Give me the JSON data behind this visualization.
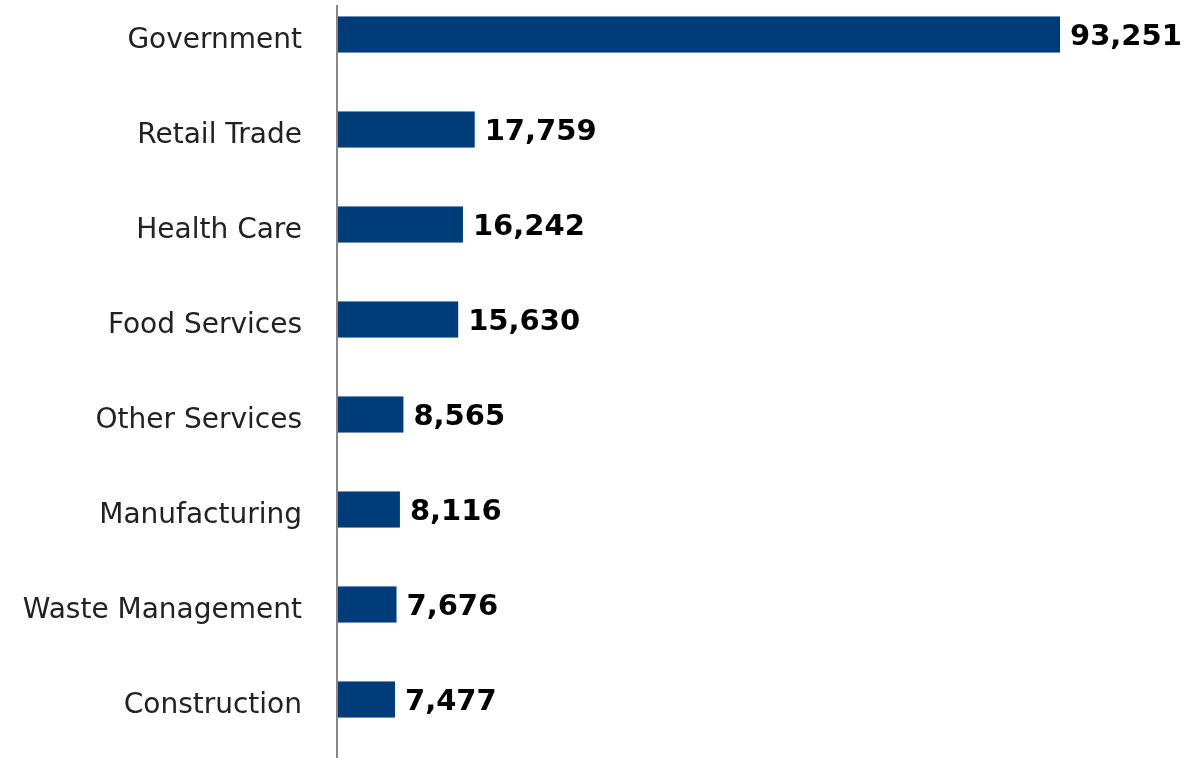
{
  "chart_data": {
    "type": "bar",
    "orientation": "horizontal",
    "categories": [
      "Government",
      "Retail Trade",
      "Health Care",
      "Food Services",
      "Other Services",
      "Manufacturing",
      "Waste Management",
      "Construction"
    ],
    "values": [
      93251,
      17759,
      16242,
      15630,
      8565,
      8116,
      7676,
      7477
    ],
    "value_labels": [
      "93,251",
      "17,759",
      "16,242",
      "15,630",
      "8,565",
      "8,116",
      "7,676",
      "7,477"
    ],
    "color": "#003b7a"
  }
}
